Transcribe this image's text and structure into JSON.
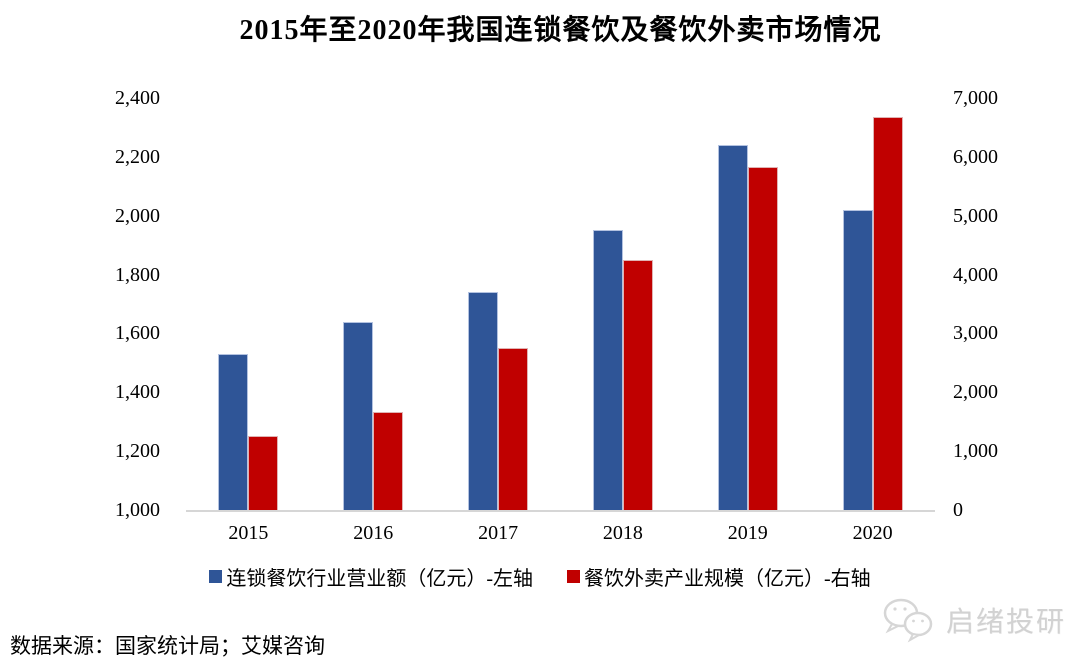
{
  "title": "2015年至2020年我国连锁餐饮及餐饮外卖市场情况",
  "source_note": "数据来源：国家统计局；艾媒咨询",
  "watermark": {
    "icon": "wechat-bubbles-icon",
    "text": "启绪投研"
  },
  "colors": {
    "series_blue": "#2F5597",
    "series_red": "#C00000",
    "axis_line": "#D6D6D6",
    "watermark_gray": "#D2D2D2"
  },
  "legend": {
    "items": [
      {
        "label": "连锁餐饮行业营业额（亿元）-左轴",
        "color": "#2F5597"
      },
      {
        "label": "餐饮外卖产业规模（亿元）-右轴",
        "color": "#C00000"
      }
    ]
  },
  "chart_data": {
    "type": "bar",
    "title": "2015年至2020年我国连锁餐饮及餐饮外卖市场情况",
    "categories": [
      "2015",
      "2016",
      "2017",
      "2018",
      "2019",
      "2020"
    ],
    "series": [
      {
        "name": "连锁餐饮行业营业额（亿元）-左轴",
        "axis": "left",
        "color": "#2F5597",
        "values": [
          1530,
          1640,
          1740,
          1950,
          2240,
          2020
        ]
      },
      {
        "name": "餐饮外卖产业规模（亿元）-右轴",
        "axis": "right",
        "color": "#C00000",
        "values": [
          1250,
          1660,
          2750,
          4250,
          5820,
          6680
        ]
      }
    ],
    "left_axis": {
      "min": 1000,
      "max": 2400,
      "tick_step": 200,
      "ticks": [
        "2,400",
        "2,200",
        "2,000",
        "1,800",
        "1,600",
        "1,400",
        "1,200",
        "1,000"
      ]
    },
    "right_axis": {
      "min": 0,
      "max": 7000,
      "tick_step": 1000,
      "ticks": [
        "7,000",
        "6,000",
        "5,000",
        "4,000",
        "3,000",
        "2,000",
        "1,000",
        "0"
      ]
    },
    "grid": false,
    "legend_position": "bottom",
    "xlabel": "",
    "ylabel": ""
  }
}
